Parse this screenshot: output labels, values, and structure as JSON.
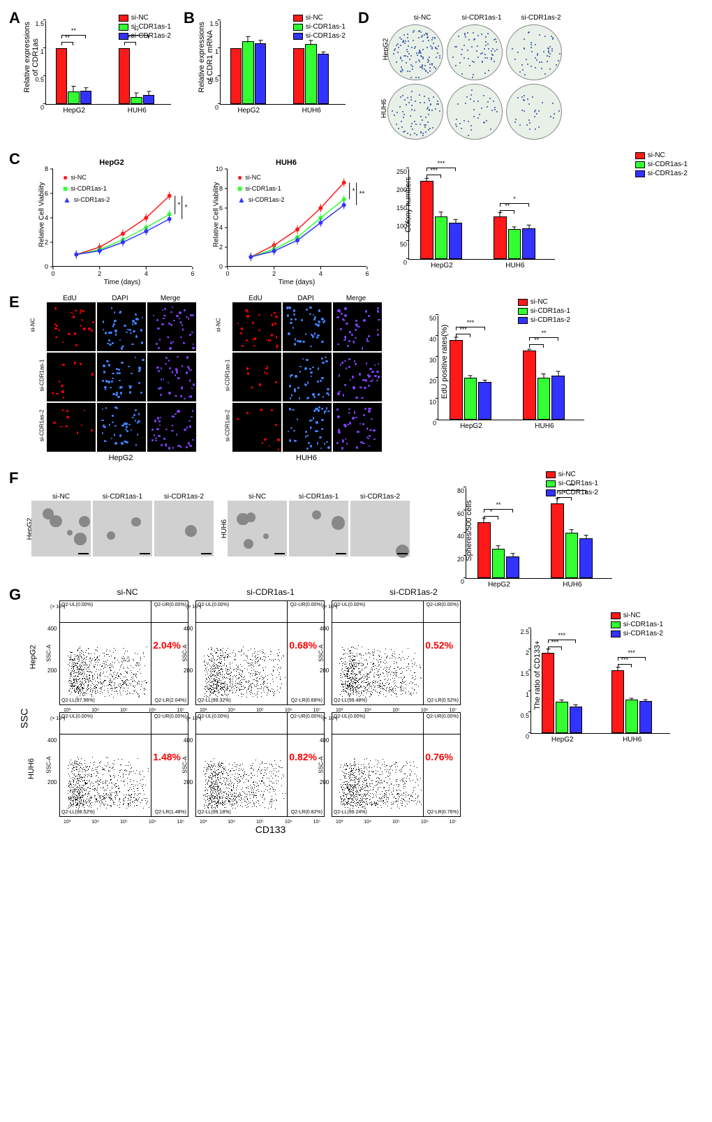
{
  "colors": {
    "si_nc": "#ff1a1a",
    "si_cdr1as_1": "#33ff33",
    "si_cdr1as_2": "#3333ff",
    "bar_border": "#000000"
  },
  "conditions": [
    "si-NC",
    "si-CDR1as-1",
    "si-CDR1as-2"
  ],
  "cell_lines": [
    "HepG2",
    "HUH6"
  ],
  "panelA": {
    "type": "bar",
    "ylabel": "Relative expressions\nof CDR1as",
    "ylim": [
      0,
      1.5
    ],
    "ytick_step": 0.5,
    "groups": [
      "HepG2",
      "HUH6"
    ],
    "values": {
      "HepG2": [
        1.0,
        0.22,
        0.24
      ],
      "HUH6": [
        1.0,
        0.13,
        0.16
      ]
    },
    "errors": {
      "HepG2": [
        0,
        0.1,
        0.06
      ],
      "HUH6": [
        0,
        0.08,
        0.07
      ]
    },
    "sig": {
      "HepG2": [
        "**",
        "**"
      ],
      "HUH6": [
        "**",
        "**"
      ]
    }
  },
  "panelB": {
    "type": "bar",
    "ylabel": "Relative expressions\nof CDR1 mRNA",
    "ylim": [
      0,
      1.5
    ],
    "ytick_step": 0.5,
    "groups": [
      "HepG2",
      "HUH6"
    ],
    "values": {
      "HepG2": [
        1.0,
        1.12,
        1.09
      ],
      "HUH6": [
        1.0,
        1.07,
        0.9
      ]
    },
    "errors": {
      "HepG2": [
        0,
        0.09,
        0.06
      ],
      "HUH6": [
        0,
        0.07,
        0.04
      ]
    }
  },
  "panelC": {
    "type": "line",
    "charts": [
      {
        "title": "HepG2",
        "ylabel": "Relative Cell Viability",
        "xlabel": "Time (days)",
        "xlim": [
          0,
          6
        ],
        "ylim": [
          0,
          8
        ],
        "ytick_step": 2,
        "xtick_step": 2,
        "series": {
          "si-NC": [
            [
              1,
              1.0
            ],
            [
              2,
              1.6
            ],
            [
              3,
              2.7
            ],
            [
              4,
              4.0
            ],
            [
              5,
              5.8
            ]
          ],
          "si-CDR1as-1": [
            [
              1,
              1.0
            ],
            [
              2,
              1.4
            ],
            [
              3,
              2.2
            ],
            [
              4,
              3.2
            ],
            [
              5,
              4.3
            ]
          ],
          "si-CDR1as-2": [
            [
              1,
              1.0
            ],
            [
              2,
              1.3
            ],
            [
              3,
              2.0
            ],
            [
              4,
              2.9
            ],
            [
              5,
              3.9
            ]
          ]
        },
        "sig": [
          "*",
          "*"
        ]
      },
      {
        "title": "HUH6",
        "ylabel": "Relative Cell Viability",
        "xlabel": "Time (days)",
        "xlim": [
          0,
          6
        ],
        "ylim": [
          0,
          10
        ],
        "ytick_step": 2,
        "xtick_step": 2,
        "series": {
          "si-NC": [
            [
              1,
              1.0
            ],
            [
              2,
              2.2
            ],
            [
              3,
              3.8
            ],
            [
              4,
              6.0
            ],
            [
              5,
              8.6
            ]
          ],
          "si-CDR1as-1": [
            [
              1,
              1.0
            ],
            [
              2,
              1.8
            ],
            [
              3,
              3.0
            ],
            [
              4,
              5.0
            ],
            [
              5,
              6.9
            ]
          ],
          "si-CDR1as-2": [
            [
              1,
              1.0
            ],
            [
              2,
              1.6
            ],
            [
              3,
              2.7
            ],
            [
              4,
              4.5
            ],
            [
              5,
              6.3
            ]
          ]
        },
        "sig": [
          "*",
          "**"
        ]
      }
    ]
  },
  "panelD": {
    "type": "colony",
    "top_labels": [
      "si-NC",
      "si-CDR1as-1",
      "si-CDR1as-2"
    ],
    "side_labels": [
      "HepG2",
      "HUH6"
    ],
    "bar": {
      "ylabel": "Colony numbers",
      "ylim": [
        0,
        250
      ],
      "ytick_step": 50,
      "groups": [
        "HepG2",
        "HUH6"
      ],
      "values": {
        "HepG2": [
          215,
          118,
          100
        ],
        "HUH6": [
          118,
          82,
          85
        ]
      },
      "errors": {
        "HepG2": [
          8,
          13,
          10
        ],
        "HUH6": [
          12,
          7,
          10
        ]
      },
      "sig": {
        "HepG2": [
          "***",
          "***"
        ],
        "HUH6": [
          "**",
          "*"
        ]
      }
    }
  },
  "panelE": {
    "type": "edu",
    "col_labels": [
      "EdU",
      "DAPI",
      "Merge"
    ],
    "row_labels": [
      "si-NC",
      "si-CDR1as-1",
      "si-CDR1as-2"
    ],
    "cell_lines": [
      "HepG2",
      "HUH6"
    ],
    "bar": {
      "ylabel": "EdU positive rates(%)",
      "ylim": [
        0,
        50
      ],
      "ytick_step": 10,
      "groups": [
        "HepG2",
        "HUH6"
      ],
      "values": {
        "HepG2": [
          38,
          20,
          18
        ],
        "HUH6": [
          33,
          20,
          21
        ]
      },
      "errors": {
        "HepG2": [
          1.5,
          1.2,
          1.0
        ],
        "HUH6": [
          0.8,
          2.0,
          2.2
        ]
      },
      "sig": {
        "HepG2": [
          "***",
          "***"
        ],
        "HUH6": [
          "**",
          "**"
        ]
      }
    }
  },
  "panelF": {
    "type": "sphere",
    "top_labels": [
      "si-NC",
      "si-CDR1as-1",
      "si-CDR1as-2"
    ],
    "side_labels": [
      "HepG2",
      "HUH6"
    ],
    "bar": {
      "ylabel": "Spheres/500 cells",
      "ylim": [
        0,
        80
      ],
      "ytick_step": 20,
      "groups": [
        "HepG2",
        "HUH6"
      ],
      "values": {
        "HepG2": [
          49,
          26,
          19
        ],
        "HUH6": [
          66,
          40,
          35
        ]
      },
      "errors": {
        "HepG2": [
          4,
          3,
          3
        ],
        "HUH6": [
          5,
          3,
          3
        ]
      },
      "sig": {
        "HepG2": [
          "*",
          "**"
        ],
        "HUH6": [
          "*",
          "**"
        ]
      }
    }
  },
  "panelG": {
    "type": "flow",
    "top_labels": [
      "si-NC",
      "si-CDR1as-1",
      "si-CDR1as-2"
    ],
    "side_labels": [
      "HepG2",
      "HUH6"
    ],
    "x_axis_label": "CD133",
    "y_axis_label": "SSC",
    "plots": {
      "HepG2": [
        {
          "pct": "2.04%",
          "ll": "Q2-LL(97.96%)",
          "lr": "Q2-LR(2.04%)",
          "ul": "Q2-UL(0.00%)",
          "ur": "Q2-UR(0.00%)"
        },
        {
          "pct": "0.68%",
          "ll": "Q2-LL(99.32%)",
          "lr": "Q2-LR(0.68%)",
          "ul": "Q2-UL(0.00%)",
          "ur": "Q2-UR(0.00%)"
        },
        {
          "pct": "0.52%",
          "ll": "Q2-LL(99.48%)",
          "lr": "Q2-LR(0.52%)",
          "ul": "Q2-UL(0.00%)",
          "ur": "Q2-UR(0.00%)"
        }
      ],
      "HUH6": [
        {
          "pct": "1.48%",
          "ll": "Q2-LL(98.52%)",
          "lr": "Q2-LR(1.48%)",
          "ul": "Q2-UL(0.00%)",
          "ur": "Q2-UR(0.00%)"
        },
        {
          "pct": "0.82%",
          "ll": "Q2-LL(99.18%)",
          "lr": "Q2-LR(0.82%)",
          "ul": "Q2-UL(0.00%)",
          "ur": "Q2-UR(0.00%)"
        },
        {
          "pct": "0.76%",
          "ll": "Q2-LL(99.24%)",
          "lr": "Q2-LR(0.76%)",
          "ul": "Q2-UL(0.00%)",
          "ur": "Q2-UR(0.00%)"
        }
      ]
    },
    "y_ticks": [
      "200",
      "400"
    ],
    "y_scale": "(× 10⁴)",
    "y_axis_inner": "SSC-A",
    "bar": {
      "ylabel": "The ratio of CD133+",
      "ylim": [
        0,
        2.5
      ],
      "ytick_step": 0.5,
      "groups": [
        "HepG2",
        "HUH6"
      ],
      "values": {
        "HepG2": [
          1.92,
          0.75,
          0.63
        ],
        "HUH6": [
          1.5,
          0.8,
          0.77
        ]
      },
      "errors": {
        "HepG2": [
          0.1,
          0.05,
          0.05
        ],
        "HUH6": [
          0.08,
          0.04,
          0.04
        ]
      },
      "sig": {
        "HepG2": [
          "***",
          "***"
        ],
        "HUH6": [
          "***",
          "***"
        ]
      }
    }
  }
}
